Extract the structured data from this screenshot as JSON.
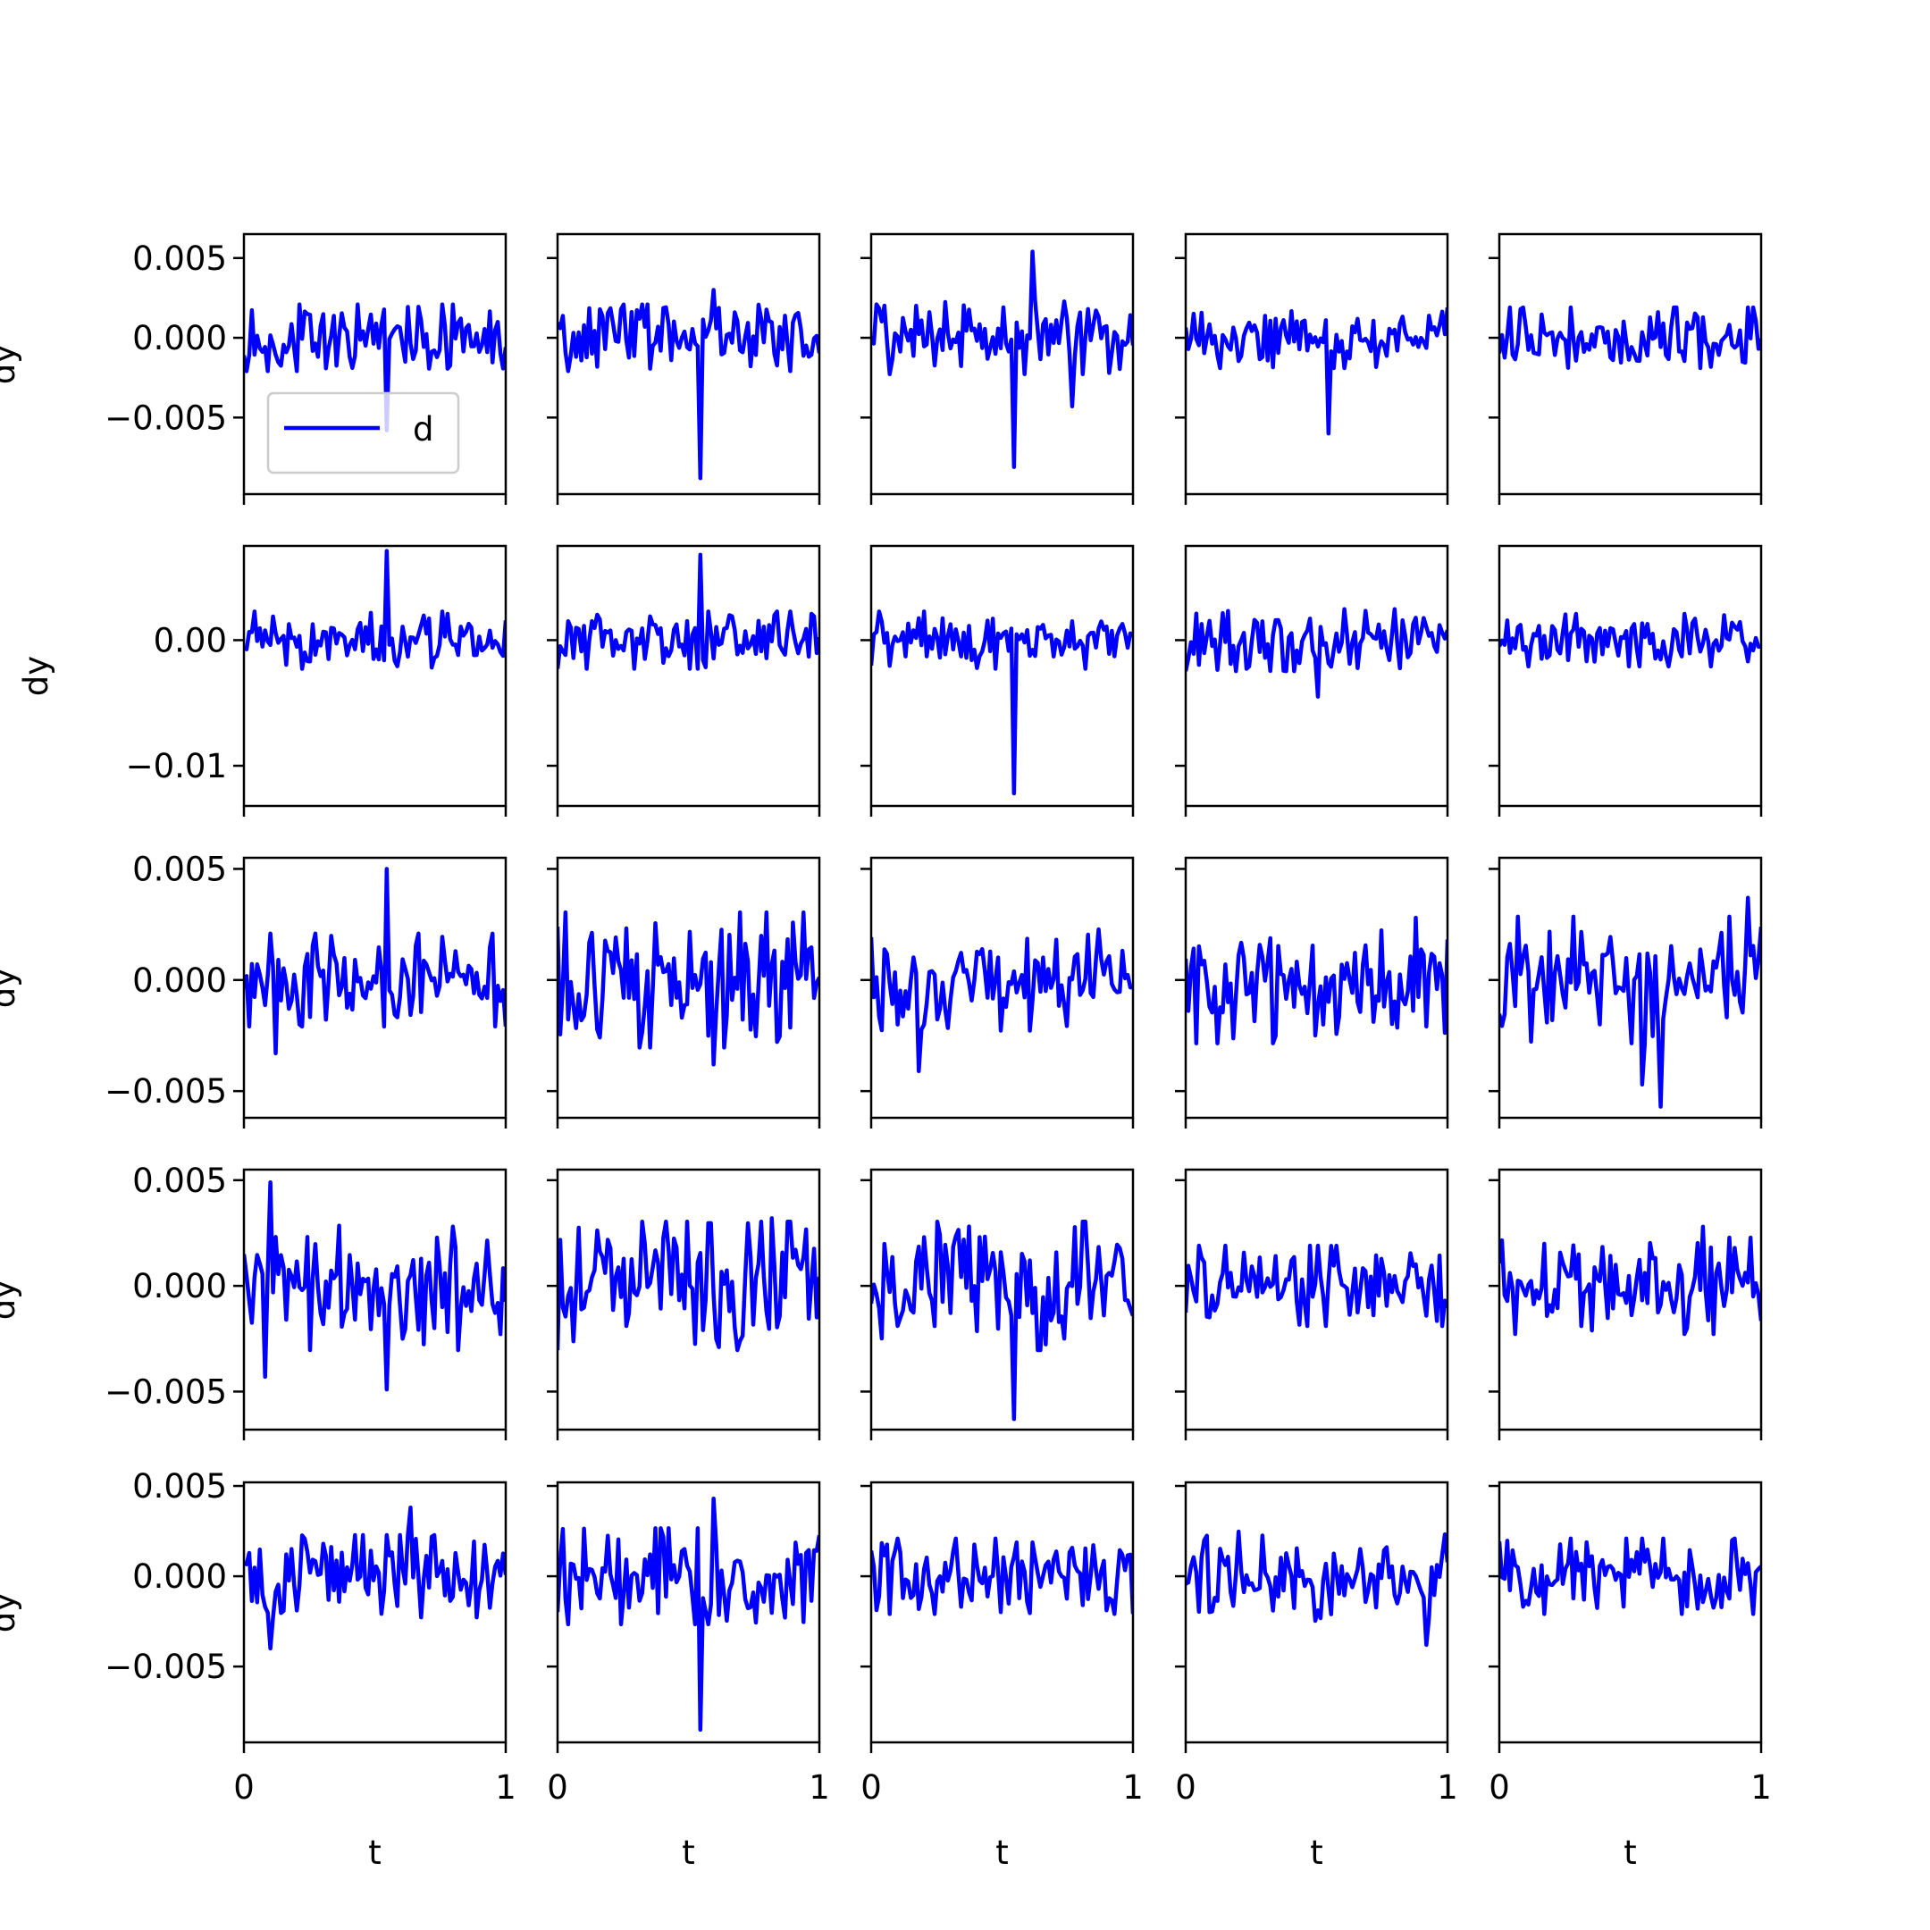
{
  "figure": {
    "xlabel": "t",
    "ylabel": "dy",
    "line_color": "#0000ff",
    "legend": {
      "label": "d",
      "location": "lower-left",
      "panel": "row-1-col-1"
    }
  },
  "chart_data": {
    "type": "line",
    "layout": {
      "rows": 5,
      "cols": 5,
      "sharex": true,
      "sharey": "row"
    },
    "x_range": [
      0,
      1
    ],
    "x_ticks": [
      "0",
      "1"
    ],
    "points_per_series": 100,
    "rows": [
      {
        "ylim": [
          -0.0098,
          0.0065
        ],
        "y_ticks": [
          0.005,
          0.0,
          -0.005
        ],
        "y_tick_labels": [
          "0.005",
          "0.000",
          "−0.005"
        ]
      },
      {
        "ylim": [
          -0.0132,
          0.0075
        ],
        "y_ticks": [
          0.0,
          -0.01
        ],
        "y_tick_labels": [
          "0.00",
          "−0.01"
        ]
      },
      {
        "ylim": [
          -0.0062,
          0.0055
        ],
        "y_ticks": [
          0.005,
          0.0,
          -0.005
        ],
        "y_tick_labels": [
          "0.005",
          "0.000",
          "−0.005"
        ]
      },
      {
        "ylim": [
          -0.0068,
          0.0055
        ],
        "y_ticks": [
          0.005,
          0.0,
          -0.005
        ],
        "y_tick_labels": [
          "0.005",
          "0.000",
          "−0.005"
        ]
      },
      {
        "ylim": [
          -0.0092,
          0.0052
        ],
        "y_ticks": [
          0.005,
          0.0,
          -0.005
        ],
        "y_tick_labels": [
          "0.005",
          "0.000",
          "−0.005"
        ]
      }
    ],
    "series": [
      {
        "row": 1,
        "col": 1,
        "name": "d",
        "noise": 0.0011,
        "spikes": [
          [
            0.55,
            -0.0058
          ]
        ]
      },
      {
        "row": 1,
        "col": 2,
        "noise": 0.0011,
        "spikes": [
          [
            0.55,
            -0.0088
          ],
          [
            0.6,
            0.003
          ]
        ]
      },
      {
        "row": 1,
        "col": 3,
        "noise": 0.0012,
        "spikes": [
          [
            0.55,
            -0.0081
          ],
          [
            0.62,
            0.0054
          ],
          [
            0.77,
            -0.0043
          ]
        ]
      },
      {
        "row": 1,
        "col": 4,
        "noise": 0.001,
        "spikes": [
          [
            0.55,
            -0.006
          ]
        ]
      },
      {
        "row": 1,
        "col": 5,
        "noise": 0.001,
        "spikes": []
      },
      {
        "row": 2,
        "col": 1,
        "noise": 0.0012,
        "spikes": [
          [
            0.55,
            0.0071
          ]
        ]
      },
      {
        "row": 2,
        "col": 2,
        "noise": 0.0012,
        "spikes": [
          [
            0.55,
            0.0068
          ]
        ]
      },
      {
        "row": 2,
        "col": 3,
        "noise": 0.0012,
        "spikes": [
          [
            0.55,
            -0.0122
          ]
        ]
      },
      {
        "row": 2,
        "col": 4,
        "noise": 0.0013,
        "spikes": [
          [
            0.5,
            -0.0045
          ]
        ]
      },
      {
        "row": 2,
        "col": 5,
        "noise": 0.0011,
        "spikes": []
      },
      {
        "row": 3,
        "col": 1,
        "noise": 0.0011,
        "spikes": [
          [
            0.55,
            0.005
          ],
          [
            0.12,
            -0.0033
          ]
        ]
      },
      {
        "row": 3,
        "col": 2,
        "noise": 0.0016,
        "spikes": [
          [
            0.6,
            -0.0038
          ]
        ]
      },
      {
        "row": 3,
        "col": 3,
        "noise": 0.0012,
        "spikes": [
          [
            0.18,
            -0.0041
          ]
        ]
      },
      {
        "row": 3,
        "col": 4,
        "noise": 0.0015,
        "spikes": []
      },
      {
        "row": 3,
        "col": 5,
        "noise": 0.0015,
        "spikes": [
          [
            0.62,
            -0.0057
          ],
          [
            0.55,
            -0.0047
          ],
          [
            0.95,
            0.0037
          ]
        ]
      },
      {
        "row": 4,
        "col": 1,
        "noise": 0.0016,
        "spikes": [
          [
            0.1,
            0.0049
          ],
          [
            0.55,
            -0.0049
          ],
          [
            0.08,
            -0.0043
          ]
        ]
      },
      {
        "row": 4,
        "col": 2,
        "noise": 0.0016,
        "spikes": [
          [
            0.82,
            0.0032
          ]
        ]
      },
      {
        "row": 4,
        "col": 3,
        "noise": 0.0016,
        "spikes": [
          [
            0.55,
            -0.0063
          ]
        ]
      },
      {
        "row": 4,
        "col": 4,
        "noise": 0.001,
        "spikes": []
      },
      {
        "row": 4,
        "col": 5,
        "noise": 0.0012,
        "spikes": [
          [
            0.78,
            0.0028
          ]
        ]
      },
      {
        "row": 5,
        "col": 1,
        "noise": 0.0012,
        "spikes": [
          [
            0.64,
            0.0038
          ],
          [
            0.1,
            -0.004
          ]
        ]
      },
      {
        "row": 5,
        "col": 2,
        "noise": 0.0014,
        "spikes": [
          [
            0.55,
            -0.0085
          ],
          [
            0.6,
            0.0043
          ]
        ]
      },
      {
        "row": 5,
        "col": 3,
        "noise": 0.0011,
        "spikes": []
      },
      {
        "row": 5,
        "col": 4,
        "noise": 0.0013,
        "spikes": [
          [
            0.92,
            -0.0038
          ]
        ]
      },
      {
        "row": 5,
        "col": 5,
        "noise": 0.0011,
        "spikes": []
      }
    ]
  }
}
